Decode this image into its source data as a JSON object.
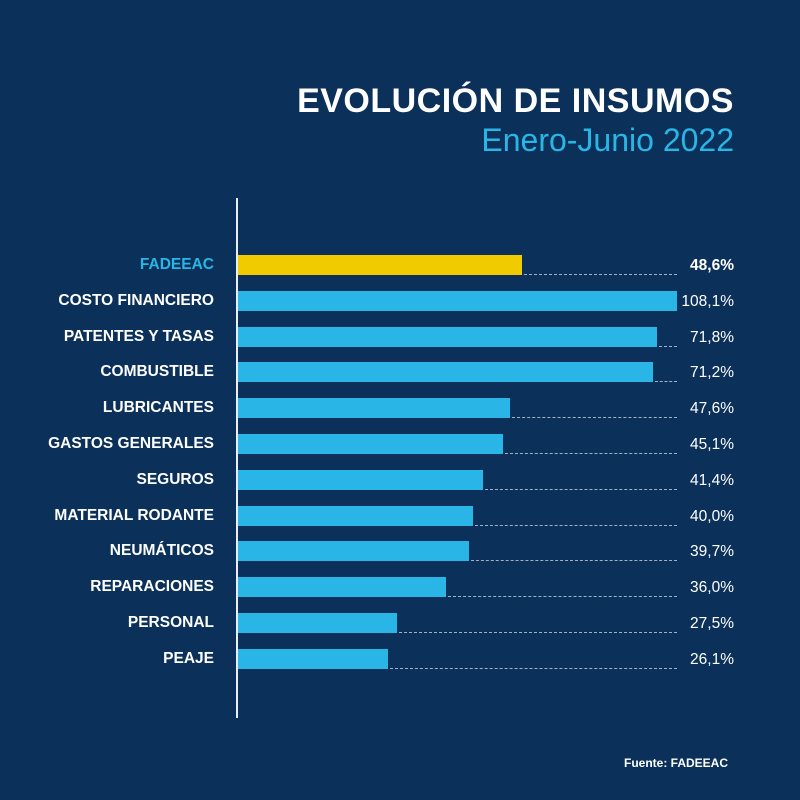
{
  "chart_data": {
    "type": "bar",
    "orientation": "horizontal",
    "title": "EVOLUCIÓN DE INSUMOS",
    "subtitle": "Enero-Junio 2022",
    "categories": [
      "FADEEAC",
      "COSTO FINANCIERO",
      "PATENTES Y TASAS",
      "COMBUSTIBLE",
      "LUBRICANTES",
      "GASTOS GENERALES",
      "SEGUROS",
      "MATERIAL RODANTE",
      "NEUMÁTICOS",
      "REPARACIONES",
      "PERSONAL",
      "PEAJE"
    ],
    "values": [
      48.6,
      108.1,
      71.8,
      71.2,
      47.6,
      45.1,
      41.4,
      40.0,
      39.7,
      36.0,
      27.5,
      26.1
    ],
    "value_labels": [
      "48,6%",
      "108,1%",
      "71,8%",
      "71,2%",
      "47,6%",
      "45,1%",
      "41,4%",
      "40,0%",
      "39,7%",
      "36,0%",
      "27,5%",
      "26,1%"
    ],
    "highlight_index": 0,
    "colors": {
      "background": "#0b315a",
      "bar": "#29b6e6",
      "highlight": "#f0cb00"
    },
    "source": "Fuente: FADEEAC"
  }
}
